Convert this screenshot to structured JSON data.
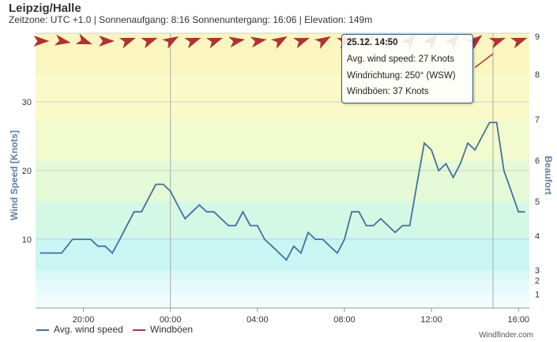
{
  "title": "Leipzig/Halle",
  "subtitle": "Zeitzone: UTC +1.0 | Sonnenaufgang: 8:16 Sonnenuntergang: 16:06 | Elevation: 149m",
  "tooltip": {
    "date": "25.12. 14:50",
    "avg_speed": "Avg. wind speed: 27 Knots",
    "direction": "Windrichtung: 250° (WSW)",
    "gusts": "Windböen: 37 Knots"
  },
  "credit": "Windfinder.com",
  "colors": {
    "speed": "#44709d",
    "gust": "#a03a3a",
    "arrow": "#b03232"
  },
  "chart_data": {
    "type": "line",
    "ylabel": "Wind Speed [Knots]",
    "y2label": "Beaufort",
    "ylim": [
      0,
      40
    ],
    "yticks": [
      10,
      20,
      30
    ],
    "xlim": [
      17.8,
      40.5
    ],
    "xticks": [
      {
        "h": 20,
        "label": "20:00"
      },
      {
        "h": 24,
        "label": "00:00"
      },
      {
        "h": 28,
        "label": "04:00"
      },
      {
        "h": 32,
        "label": "08:00"
      },
      {
        "h": 36,
        "label": "12:00"
      },
      {
        "h": 40,
        "label": "16:00"
      }
    ],
    "beaufort_ticks": [
      {
        "kt": 2,
        "label": "1"
      },
      {
        "kt": 4,
        "label": "2"
      },
      {
        "kt": 5.5,
        "label": "3"
      },
      {
        "kt": 10.5,
        "label": "4"
      },
      {
        "kt": 15.5,
        "label": "5"
      },
      {
        "kt": 21.5,
        "label": "6"
      },
      {
        "kt": 27.5,
        "label": "7"
      },
      {
        "kt": 34,
        "label": "8"
      },
      {
        "kt": 41,
        "label": "9"
      }
    ],
    "crosshairs": [
      24,
      38.83
    ],
    "series": [
      {
        "name": "Avg. wind speed",
        "x": [
          18.0,
          18.5,
          19.0,
          19.5,
          20.0,
          20.33,
          20.67,
          21.0,
          21.33,
          21.67,
          22.0,
          22.33,
          22.67,
          23.0,
          23.33,
          23.67,
          24.0,
          24.33,
          24.67,
          25.0,
          25.33,
          25.67,
          26.0,
          26.33,
          26.67,
          27.0,
          27.33,
          27.67,
          28.0,
          28.33,
          28.67,
          29.0,
          29.33,
          29.67,
          30.0,
          30.33,
          30.67,
          31.0,
          31.33,
          31.67,
          32.0,
          32.33,
          32.67,
          33.0,
          33.33,
          33.67,
          34.0,
          34.33,
          34.67,
          35.0,
          35.33,
          35.67,
          36.0,
          36.33,
          36.67,
          37.0,
          37.33,
          37.67,
          38.0,
          38.33,
          38.67,
          39.0,
          39.33,
          39.67,
          40.0,
          40.3
        ],
        "values": [
          8,
          8,
          8,
          10,
          10,
          10,
          9,
          9,
          8,
          10,
          12,
          14,
          14,
          16,
          18,
          18,
          17,
          15,
          13,
          14,
          15,
          14,
          14,
          13,
          12,
          12,
          14,
          12,
          12,
          10,
          9,
          8,
          7,
          9,
          8,
          11,
          10,
          10,
          9,
          8,
          10,
          14,
          14,
          12,
          12,
          13,
          12,
          11,
          12,
          12,
          18,
          24,
          23,
          20,
          21,
          19,
          21,
          24,
          23,
          25,
          27,
          27,
          20,
          17,
          14,
          14
        ]
      },
      {
        "name": "Windböen",
        "x": [
          38.0,
          38.83
        ],
        "values": [
          35,
          37
        ]
      }
    ],
    "direction_arrows": [
      {
        "x": 18.0,
        "dir": 270
      },
      {
        "x": 19.0,
        "dir": 280
      },
      {
        "x": 20.0,
        "dir": 290
      },
      {
        "x": 21.0,
        "dir": 270
      },
      {
        "x": 22.0,
        "dir": 250
      },
      {
        "x": 23.0,
        "dir": 250
      },
      {
        "x": 24.0,
        "dir": 240
      },
      {
        "x": 25.0,
        "dir": 250
      },
      {
        "x": 26.0,
        "dir": 250
      },
      {
        "x": 27.0,
        "dir": 260
      },
      {
        "x": 28.0,
        "dir": 260
      },
      {
        "x": 29.0,
        "dir": 240
      },
      {
        "x": 30.0,
        "dir": 250
      },
      {
        "x": 31.0,
        "dir": 240
      },
      {
        "x": 32.0,
        "dir": 250
      },
      {
        "x": 33.0,
        "dir": 240
      },
      {
        "x": 34.0,
        "dir": 230
      },
      {
        "x": 35.0,
        "dir": 220
      },
      {
        "x": 36.0,
        "dir": 220
      },
      {
        "x": 37.0,
        "dir": 220
      },
      {
        "x": 38.0,
        "dir": 230
      },
      {
        "x": 39.0,
        "dir": 250
      },
      {
        "x": 40.0,
        "dir": 250
      }
    ]
  }
}
